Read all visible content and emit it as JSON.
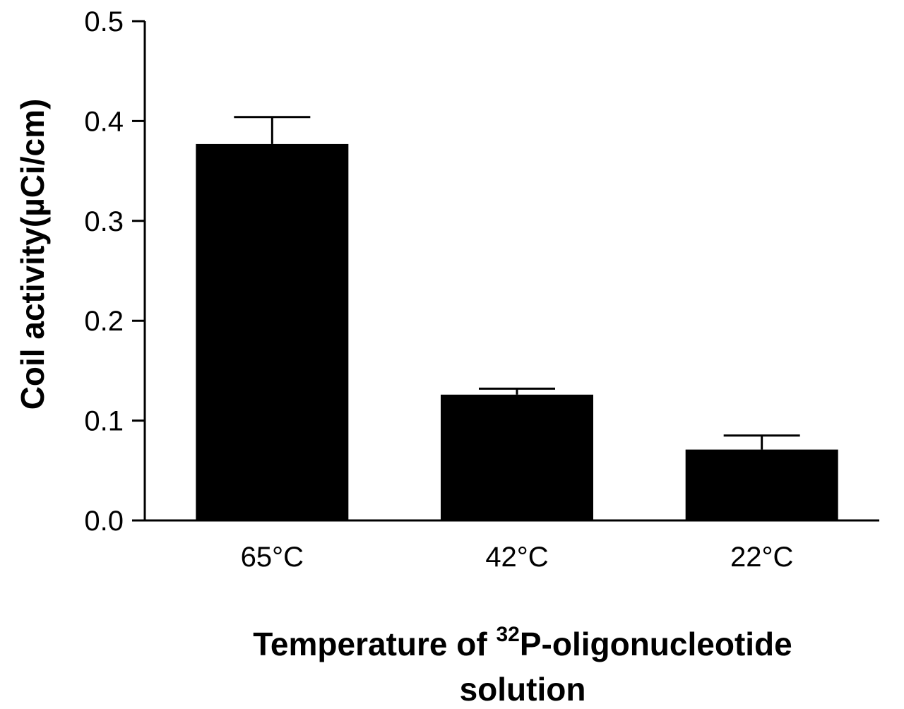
{
  "chart_data": {
    "type": "bar",
    "categories": [
      "65°C",
      "42°C",
      "22°C"
    ],
    "values": [
      0.377,
      0.126,
      0.071
    ],
    "errors": [
      0.027,
      0.006,
      0.014
    ],
    "ylabel": "Coil activity(µCi/cm)",
    "xlabel_prefix": "Temperature of ",
    "xlabel_sup": "32",
    "xlabel_suffix": "P-oligonucleotide",
    "xlabel_line2": "solution",
    "ylim": [
      0.0,
      0.5
    ],
    "yticks": [
      "0.0",
      "0.1",
      "0.2",
      "0.3",
      "0.4",
      "0.5"
    ],
    "bar_color": "#000000",
    "grid": false
  }
}
